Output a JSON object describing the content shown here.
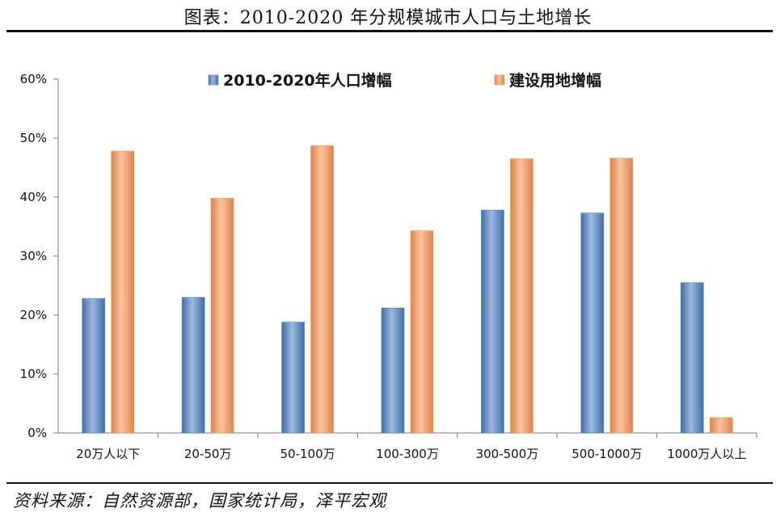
{
  "title": "图表：2010-2020 年分规模城市人口与土地增长",
  "source": "资料来源：自然资源部，国家统计局，泽平宏观",
  "colors": {
    "population": "#4f81bd",
    "land": "#f79646"
  },
  "chart_data": {
    "type": "bar",
    "categories": [
      "20万人以下",
      "20-50万",
      "50-100万",
      "100-300万",
      "300-500万",
      "500-1000万",
      "1000万人以上"
    ],
    "series": [
      {
        "name": "2010-2020年人口增幅",
        "values": [
          22.8,
          23.0,
          18.8,
          21.2,
          37.8,
          37.3,
          25.5
        ]
      },
      {
        "name": "建设用地增幅",
        "values": [
          47.8,
          39.8,
          48.7,
          34.3,
          46.5,
          46.6,
          2.6
        ]
      }
    ],
    "yticks": [
      "0%",
      "10%",
      "20%",
      "30%",
      "40%",
      "50%",
      "60%"
    ],
    "ylim": [
      0,
      60
    ],
    "legend_position": "top",
    "xlabel": "",
    "ylabel": ""
  }
}
